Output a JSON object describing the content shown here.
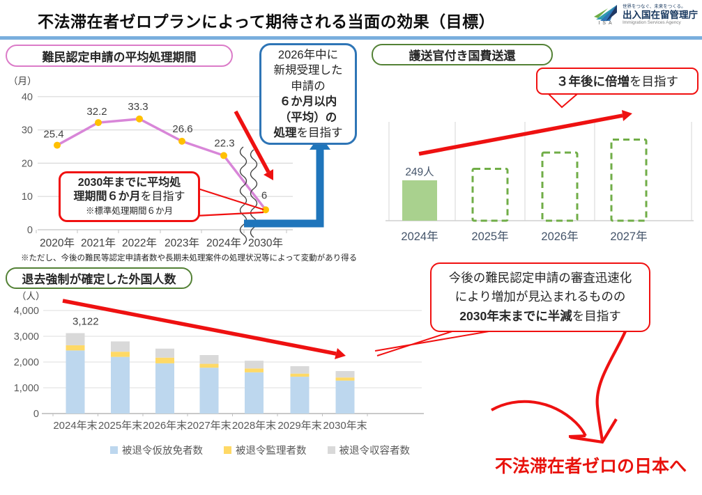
{
  "header": {
    "title": "不法滞在者ゼロプランによって期待される当面の効果（目標）",
    "logo": {
      "isa": "ISA",
      "tagline": "世界をつなぐ、未来をつくる。",
      "agency": "出入国在留管理庁",
      "agency_en": "Immigration Services Agency"
    }
  },
  "refugee_section": {
    "title": "難民認定申請の平均処理期間",
    "note": "※ただし、今後の難民等認定申請者数や長期未処理案件の処理状況等によって変動があり得る",
    "callout_2026": {
      "lines": [
        [
          {
            "t": "2026年中に",
            "b": false
          }
        ],
        [
          {
            "t": "新規受理した",
            "b": false
          }
        ],
        [
          {
            "t": "申請の",
            "b": false
          }
        ],
        [
          {
            "t": "６か月以内",
            "b": true
          }
        ],
        [
          {
            "t": "（平均）の",
            "b": true
          }
        ],
        [
          {
            "t": "処理",
            "b": true
          },
          {
            "t": "を目指す",
            "b": false
          }
        ]
      ]
    },
    "callout_2030": {
      "lines": [
        [
          {
            "t": "2030年までに平均処",
            "b": true
          }
        ],
        [
          {
            "t": "理期間６か月",
            "b": true
          },
          {
            "t": "を目指す",
            "b": false
          }
        ]
      ],
      "note": "※標準処理期間６か月"
    }
  },
  "escort_section": {
    "title": "護送官付き国費送還",
    "callout": {
      "lines": [
        [
          {
            "t": "３年後に倍増",
            "b": true
          },
          {
            "t": "を目指す",
            "b": false
          }
        ]
      ]
    }
  },
  "deport_section": {
    "title": "退去強制が確定した外国人数",
    "callout": {
      "lines": [
        [
          {
            "t": "今後の難民認定申請の審査迅速化",
            "b": false
          }
        ],
        [
          {
            "t": "により増加が見込まれるものの",
            "b": false
          }
        ],
        [
          {
            "t": "2030年末までに半減",
            "b": true
          },
          {
            "t": "を目指す",
            "b": false
          }
        ]
      ]
    }
  },
  "goal": {
    "text": "不法滞在者ゼロの日本へ",
    "color": "#e8120c"
  },
  "chart_data": [
    {
      "id": "refugee_processing_period",
      "type": "line",
      "title": "難民認定申請の平均処理期間",
      "unit_label": "（月）",
      "categories": [
        "2020年",
        "2021年",
        "2022年",
        "2023年",
        "2024年",
        "2030年"
      ],
      "values": [
        25.4,
        32.2,
        33.3,
        26.6,
        22.3,
        6
      ],
      "ylim": [
        0,
        40
      ],
      "yticks": [
        0,
        10,
        20,
        30,
        40
      ],
      "axis_break_between": [
        "2024年",
        "2030年"
      ],
      "line_color": "#d886d8",
      "marker_color": "#ffc000",
      "grid": true
    },
    {
      "id": "escorted_state_funded_repatriation",
      "type": "bar",
      "title": "護送官付き国費送還",
      "categories": [
        "2024年",
        "2025年",
        "2026年",
        "2027年"
      ],
      "values": [
        249,
        320,
        420,
        500
      ],
      "value_labels": [
        "249人",
        "",
        "",
        ""
      ],
      "bar_styles": [
        "solid",
        "dashed-target",
        "dashed-target",
        "dashed-target"
      ],
      "ylim": [
        0,
        530
      ],
      "bar_color": "#a9d18e",
      "dash_color": "#70ad47",
      "note": "2025-2027年の点線バーは目標値（推定読み取り値）"
    },
    {
      "id": "foreigners_with_confirmed_deportation",
      "type": "stacked_bar",
      "title": "退去強制が確定した外国人数",
      "unit_label": "（人）",
      "categories": [
        "2024年末",
        "2025年末",
        "2026年末",
        "2027年末",
        "2028年末",
        "2029年末",
        "2030年末"
      ],
      "series": [
        {
          "name": "被退令仮放免者数",
          "color": "#bdd7ee",
          "values": [
            2450,
            2200,
            1950,
            1780,
            1600,
            1430,
            1280
          ]
        },
        {
          "name": "被退令監理者数",
          "color": "#ffd966",
          "values": [
            202,
            200,
            220,
            150,
            150,
            120,
            120
          ]
        },
        {
          "name": "被退令収容者数",
          "color": "#d9d9d9",
          "values": [
            470,
            400,
            350,
            340,
            300,
            290,
            250
          ]
        }
      ],
      "total_label": {
        "category": "2024年末",
        "text": "3,122"
      },
      "ylim": [
        0,
        4000
      ],
      "yticks": [
        "0",
        "1,000",
        "2,000",
        "3,000",
        "4,000"
      ],
      "legend_position": "bottom"
    }
  ],
  "colors": {
    "divider_blue": "#79AEDD",
    "pink_border": "#DB7BC8",
    "green_border": "#538135",
    "blue_border": "#2E75B6",
    "red": "#f01010",
    "blue_arrow": "#1F75BB"
  }
}
